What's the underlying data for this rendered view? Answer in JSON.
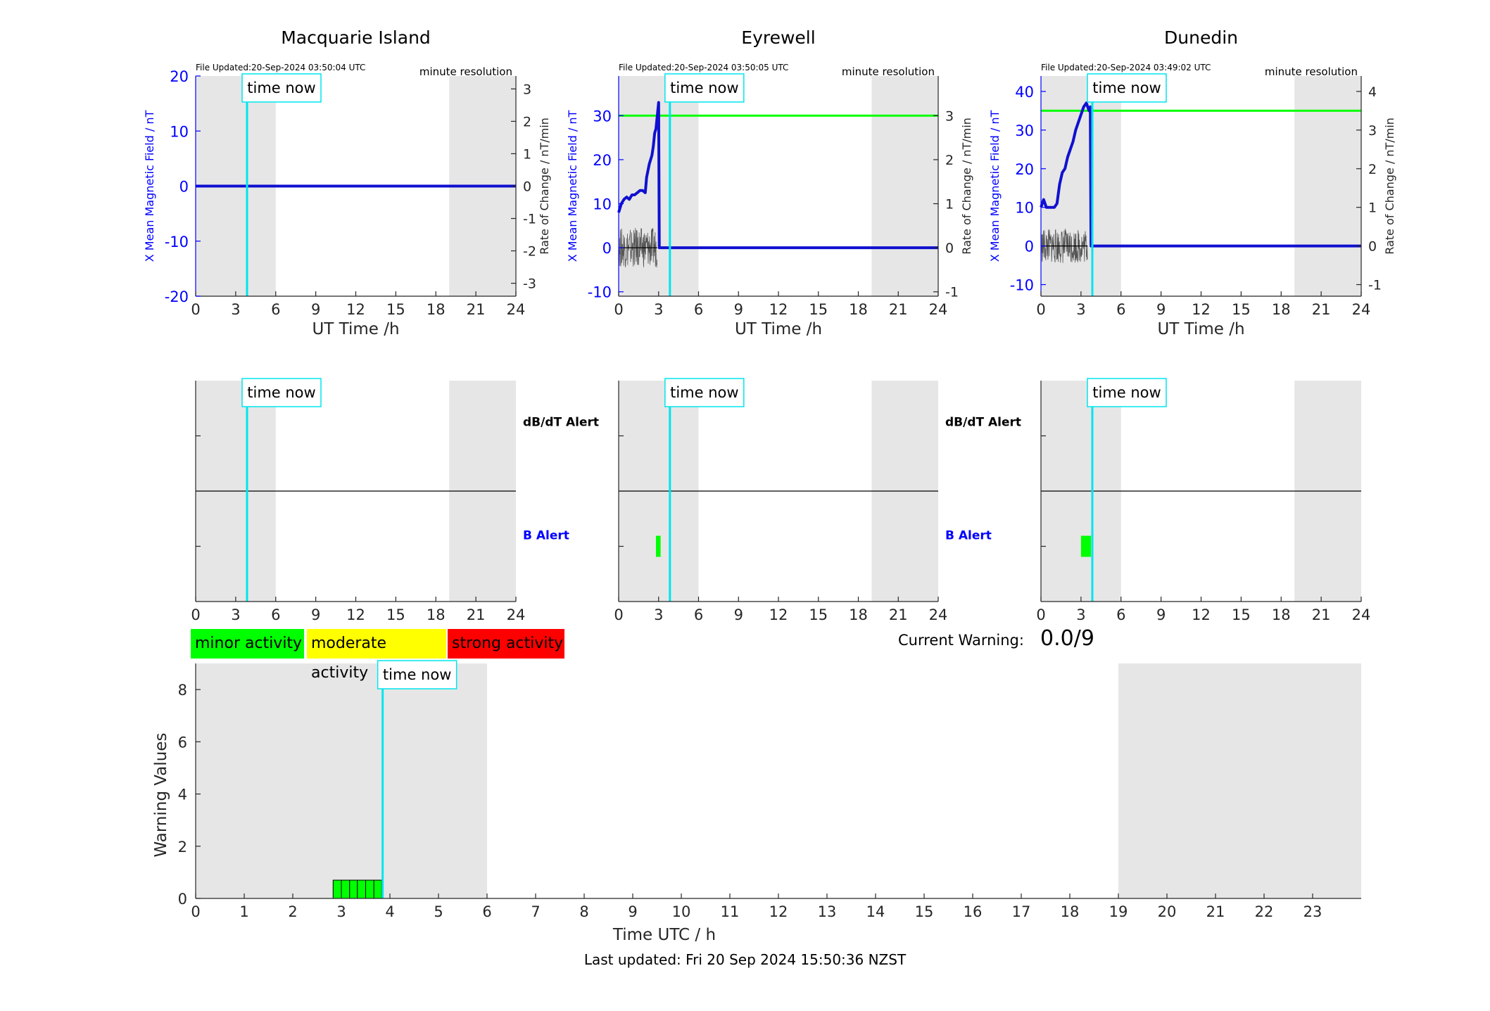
{
  "footer": {
    "last_updated": "Last updated: Fri 20 Sep 2024 15:50:36 NZST"
  },
  "legend_levels": [
    {
      "label": "minor activity",
      "color": "#00ff00"
    },
    {
      "label": "moderate activity",
      "color": "#ffff00"
    },
    {
      "label": "strong activity",
      "color": "#ff0000"
    }
  ],
  "current_warning": {
    "label": "Current Warning:",
    "value": "0.0/9"
  },
  "colors": {
    "field": "#0000ff",
    "rate": "#555555",
    "time_now": "#00e5ee",
    "threshold": "#00ff00",
    "shade": "#e6e6e6",
    "alert": "#00ff00"
  },
  "chart_data": [
    {
      "type": "line",
      "title": "Macquarie Island",
      "file_updated": "File Updated:20-Sep-2024 03:50:04 UTC",
      "resolution": "minute resolution",
      "time_now_label": "time now",
      "time_now": 3.85,
      "night_shading": [
        [
          0,
          6
        ],
        [
          19,
          24
        ]
      ],
      "xlabel": "UT Time /h",
      "ylabel": "X Mean Magnetic Field / nT",
      "y2label": "Rate of Change / nT/min",
      "xlim": [
        0,
        24
      ],
      "xticks": [
        "0",
        "3",
        "6",
        "9",
        "12",
        "15",
        "18",
        "21",
        "24"
      ],
      "ylim": [
        -20,
        20
      ],
      "yticks": [
        "-20",
        "-10",
        "0",
        "10",
        "20"
      ],
      "y2lim": [
        -3.4,
        3.4
      ],
      "y2ticks": [
        "-3",
        "-2",
        "-1",
        "0",
        "1",
        "2",
        "3"
      ],
      "threshold": null,
      "series": [
        {
          "x": [
            0,
            24
          ],
          "y": [
            0,
            0
          ]
        }
      ],
      "rate_noise": null
    },
    {
      "type": "line",
      "title": "Eyrewell",
      "file_updated": "File Updated:20-Sep-2024 03:50:05 UTC",
      "resolution": "minute resolution",
      "time_now_label": "time now",
      "time_now": 3.85,
      "night_shading": [
        [
          0,
          6
        ],
        [
          19,
          24
        ]
      ],
      "xlabel": "UT Time /h",
      "ylabel": "X Mean Magnetic Field / nT",
      "y2label": "Rate of Change / nT/min",
      "xlim": [
        0,
        24
      ],
      "xticks": [
        "0",
        "3",
        "6",
        "9",
        "12",
        "15",
        "18",
        "21",
        "24"
      ],
      "ylim": [
        -11,
        39
      ],
      "yticks": [
        "-10",
        "0",
        "10",
        "20",
        "30"
      ],
      "y2lim": [
        -1.1,
        3.9
      ],
      "y2ticks": [
        "-1",
        "0",
        "1",
        "2",
        "3"
      ],
      "threshold": 30,
      "series": [
        {
          "x": [
            0,
            0.2,
            0.4,
            0.6,
            0.8,
            1.0,
            1.2,
            1.4,
            1.6,
            1.8,
            2.0,
            2.1,
            2.3,
            2.5,
            2.6,
            2.7,
            2.8,
            2.9,
            3.0,
            3.05,
            3.1,
            24
          ],
          "y": [
            8,
            10,
            11,
            11.5,
            11,
            12,
            12,
            12.5,
            13,
            13,
            12.5,
            16,
            19,
            21,
            23,
            26,
            27,
            30,
            33,
            0,
            0,
            0
          ]
        }
      ],
      "rate_noise": {
        "x0": 0,
        "x1": 2.9,
        "amp": 0.45
      }
    },
    {
      "type": "line",
      "title": "Dunedin",
      "file_updated": "File Updated:20-Sep-2024 03:49:02 UTC",
      "resolution": "minute resolution",
      "time_now_label": "time now",
      "time_now": 3.85,
      "night_shading": [
        [
          0,
          6
        ],
        [
          19,
          24
        ]
      ],
      "xlabel": "UT Time /h",
      "ylabel": "X Mean Magnetic Field / nT",
      "y2label": "Rate of Change / nT/min",
      "xlim": [
        0,
        24
      ],
      "xticks": [
        "0",
        "3",
        "6",
        "9",
        "12",
        "15",
        "18",
        "21",
        "24"
      ],
      "ylim": [
        -13,
        44
      ],
      "yticks": [
        "-10",
        "0",
        "10",
        "20",
        "30",
        "40"
      ],
      "y2lim": [
        -1.3,
        4.4
      ],
      "y2ticks": [
        "-1",
        "0",
        "1",
        "2",
        "3",
        "4"
      ],
      "threshold": 35,
      "series": [
        {
          "x": [
            0,
            0.2,
            0.4,
            0.6,
            0.8,
            1.0,
            1.2,
            1.4,
            1.6,
            1.8,
            2.0,
            2.2,
            2.4,
            2.6,
            2.8,
            3.0,
            3.2,
            3.4,
            3.6,
            3.7,
            3.75,
            24
          ],
          "y": [
            10,
            12,
            10,
            10,
            10,
            10,
            11,
            16,
            19,
            20,
            23,
            25,
            27,
            30,
            32,
            34,
            36,
            37,
            35,
            36,
            0,
            0
          ]
        }
      ],
      "rate_noise": {
        "x0": 0,
        "x1": 3.5,
        "amp": 0.45
      }
    },
    {
      "type": "bar",
      "title": "",
      "time_now_label": "time now",
      "time_now": 3.85,
      "night_shading": [
        [
          0,
          6
        ],
        [
          19,
          24
        ]
      ],
      "xlim": [
        0,
        24
      ],
      "xticks": [
        "0",
        "3",
        "6",
        "9",
        "12",
        "15",
        "18",
        "21",
        "24"
      ],
      "row_labels": {
        "top": "dB/dT Alert",
        "bottom": "B Alert"
      },
      "alerts": []
    },
    {
      "type": "bar",
      "title": "",
      "time_now_label": "time now",
      "time_now": 3.85,
      "night_shading": [
        [
          0,
          6
        ],
        [
          19,
          24
        ]
      ],
      "xlim": [
        0,
        24
      ],
      "xticks": [
        "0",
        "3",
        "6",
        "9",
        "12",
        "15",
        "18",
        "21",
        "24"
      ],
      "row_labels": {
        "top": "dB/dT Alert",
        "bottom": "B Alert"
      },
      "alerts": [
        {
          "row": "bottom",
          "x0": 2.8,
          "x1": 3.15
        }
      ]
    },
    {
      "type": "bar",
      "title": "",
      "time_now_label": "time now",
      "time_now": 3.85,
      "night_shading": [
        [
          0,
          6
        ],
        [
          19,
          24
        ]
      ],
      "xlim": [
        0,
        24
      ],
      "xticks": [
        "0",
        "3",
        "6",
        "9",
        "12",
        "15",
        "18",
        "21",
        "24"
      ],
      "row_labels": {
        "top": "",
        "bottom": ""
      },
      "alerts": [
        {
          "row": "bottom",
          "x0": 3.0,
          "x1": 3.75
        }
      ]
    },
    {
      "type": "bar",
      "title": "",
      "time_now_label": "time now",
      "time_now": 3.85,
      "night_shading": [
        [
          0,
          6
        ],
        [
          19,
          24
        ]
      ],
      "xlabel": "Time UTC / h",
      "ylabel": "Warning Values",
      "xlim": [
        0,
        24
      ],
      "xticks": [
        "0",
        "1",
        "2",
        "3",
        "4",
        "5",
        "6",
        "7",
        "8",
        "9",
        "10",
        "11",
        "12",
        "13",
        "14",
        "15",
        "16",
        "17",
        "18",
        "19",
        "20",
        "21",
        "22",
        "23"
      ],
      "ylim": [
        0,
        9
      ],
      "yticks": [
        "0",
        "2",
        "4",
        "6",
        "8"
      ],
      "bars": [
        {
          "x0": 2.83,
          "x1": 3.0,
          "value": 0.7
        },
        {
          "x0": 3.0,
          "x1": 3.17,
          "value": 0.7
        },
        {
          "x0": 3.17,
          "x1": 3.33,
          "value": 0.7
        },
        {
          "x0": 3.33,
          "x1": 3.5,
          "value": 0.7
        },
        {
          "x0": 3.5,
          "x1": 3.67,
          "value": 0.7
        },
        {
          "x0": 3.67,
          "x1": 3.83,
          "value": 0.7
        }
      ]
    }
  ]
}
